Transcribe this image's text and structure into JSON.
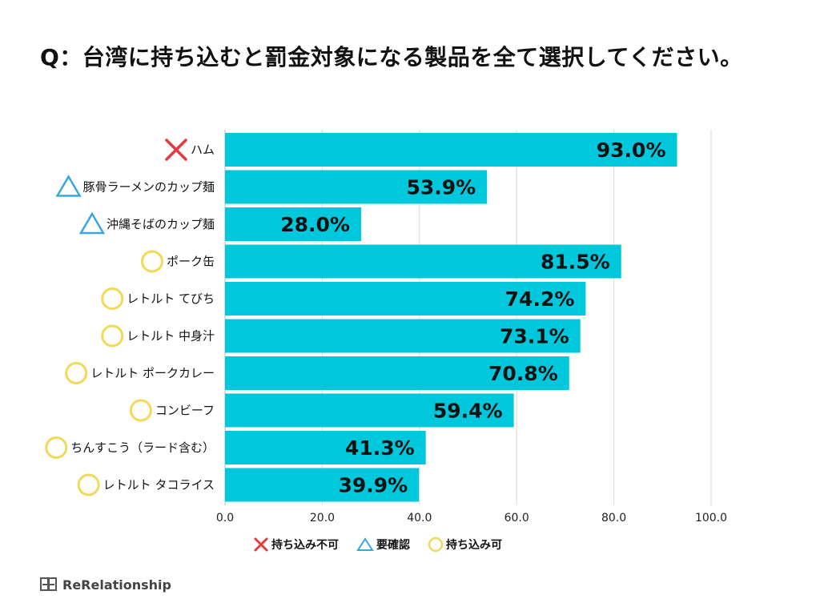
{
  "title": "Q：台湾に持ち込むと罰金対象になる製品を全て選択してください。",
  "colors": {
    "bar": "#00c8dc",
    "cross": "#e8383d",
    "triangle": "#3aa6e0",
    "circle": "#f2d95a",
    "grid": "#d9d9d9"
  },
  "chart_data": {
    "type": "bar",
    "orientation": "horizontal",
    "title": "Q：台湾に持ち込むと罰金対象になる製品を全て選択してください。",
    "categories": [
      "ハム",
      "豚骨ラーメンのカップ麺",
      "沖縄そばのカップ麺",
      "ポーク缶",
      "レトルト てびち",
      "レトルト 中身汁",
      "レトルト ポークカレー",
      "コンビーフ",
      "ちんすこう（ラード含む）",
      "レトルト タコライス"
    ],
    "values": [
      93.0,
      53.9,
      28.0,
      81.5,
      74.2,
      73.1,
      70.8,
      59.4,
      41.3,
      39.9
    ],
    "value_labels": [
      "93.0%",
      "53.9%",
      "28.0%",
      "81.5%",
      "74.2%",
      "73.1%",
      "70.8%",
      "59.4%",
      "41.3%",
      "39.9%"
    ],
    "markers": [
      "cross",
      "triangle",
      "triangle",
      "circle",
      "circle",
      "circle",
      "circle",
      "circle",
      "circle",
      "circle"
    ],
    "xlim": [
      0,
      100
    ],
    "xticks": [
      0,
      20,
      40,
      60,
      80,
      100
    ],
    "xtick_labels": [
      "0.0",
      "20.0",
      "40.0",
      "60.0",
      "80.0",
      "100.0"
    ],
    "grid": true,
    "legend": [
      {
        "marker": "cross",
        "label": "持ち込み不可"
      },
      {
        "marker": "triangle",
        "label": "要確認"
      },
      {
        "marker": "circle",
        "label": "持ち込み可"
      }
    ]
  },
  "brand": {
    "name": "ReRelationship",
    "icon": "rerelationship-logo-icon"
  }
}
